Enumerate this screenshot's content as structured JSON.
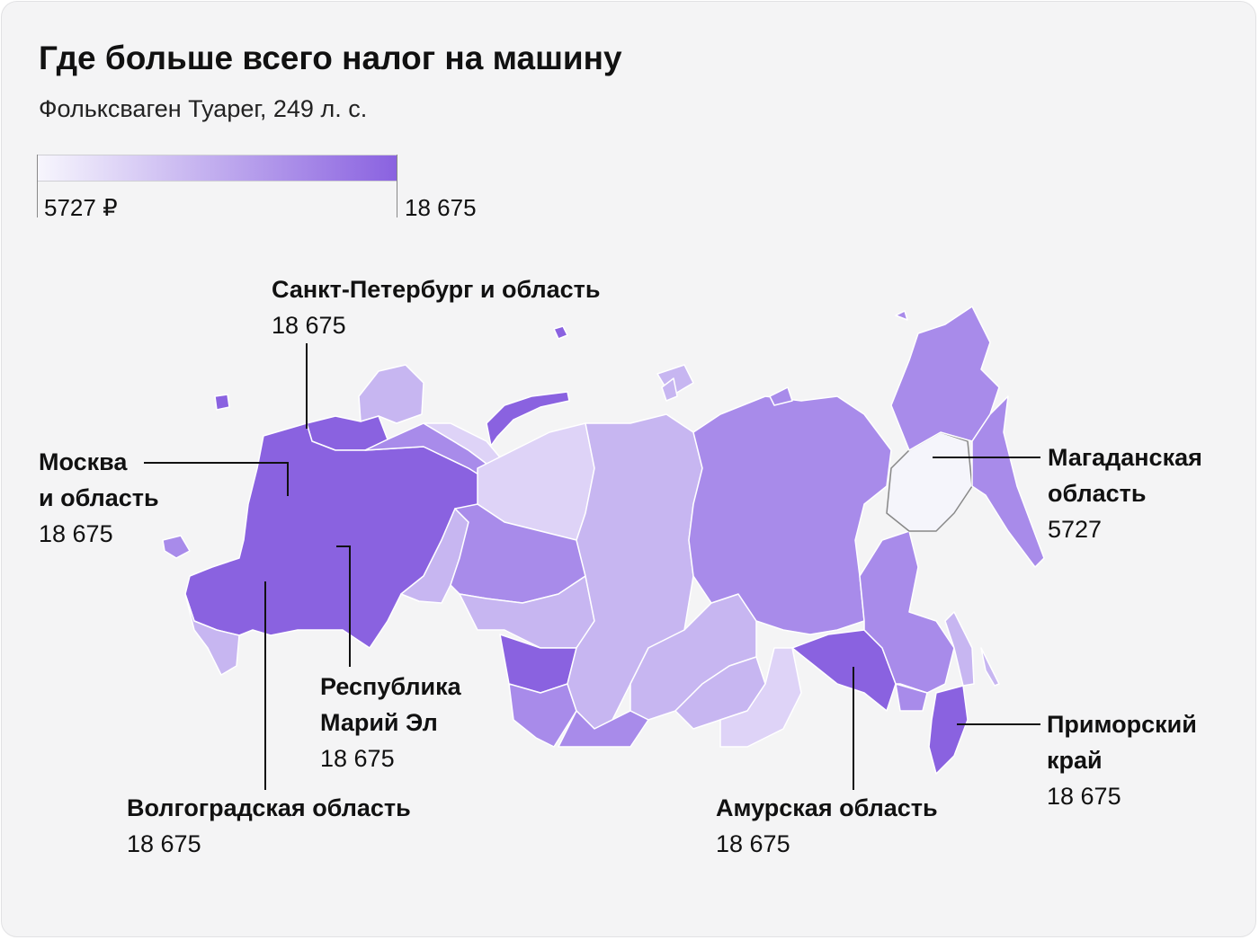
{
  "title": "Где больше всего налог на машину",
  "subtitle": "Фольксваген Туарег, 249 л. с.",
  "legend": {
    "min_label": "5727 ₽",
    "max_label": "18 675",
    "color_min": "#f7f6fd",
    "color_max": "#8a62e0"
  },
  "colors": {
    "dark": "#8a62e0",
    "medium": "#a88bea",
    "light": "#c7b6f1",
    "pale": "#ded3f7",
    "white": "#f5f5fb",
    "border": "#ffffff",
    "text": "#111111",
    "card_bg": "#f4f4f5"
  },
  "regions": [
    {
      "name": "Санкт-Петербург и область",
      "value": "18 675"
    },
    {
      "name": "Москва\nи область",
      "name_line1": "Москва",
      "name_line2": "и область",
      "value": "18 675"
    },
    {
      "name": "Республика Марий Эл",
      "name_line1": "Республика",
      "name_line2": "Марий Эл",
      "value": "18 675"
    },
    {
      "name": "Волгоградская область",
      "value": "18 675"
    },
    {
      "name": "Амурская область",
      "value": "18 675"
    },
    {
      "name": "Магаданская область",
      "name_line1": "Магаданская",
      "name_line2": "область",
      "value": "5727"
    },
    {
      "name": "Приморский край",
      "name_line1": "Приморский",
      "name_line2": "край",
      "value": "18 675"
    }
  ]
}
